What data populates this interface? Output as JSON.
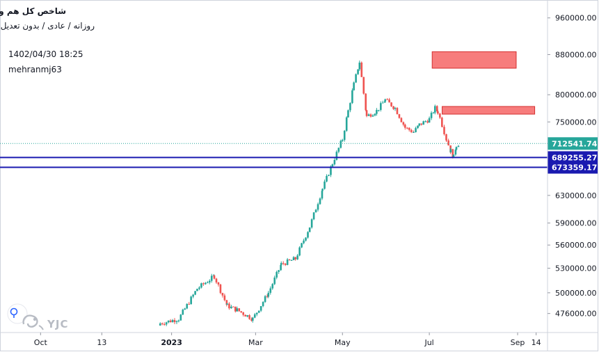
{
  "header": {
    "title": "شاخص کل هم وزن",
    "subtitle": "روزانه / عادی / بدون تعدیل",
    "timestamp": "1402/04/30 18:25",
    "author": "mehranmj63"
  },
  "watermark": {
    "text": "YJC"
  },
  "colors": {
    "up": "#26a69a",
    "down": "#ef5350",
    "support": "#1a1ab0",
    "zone_fill": "#f77c7c",
    "zone_border": "#d32f2f",
    "price_line": "#26a69a",
    "axis_text": "#131722",
    "grid": "#e0e3eb"
  },
  "chart_data": {
    "type": "candlestick",
    "y_scale": "log",
    "ylim": [
      455000,
      1000000
    ],
    "y_ticks": [
      960000,
      880000,
      800000,
      750000,
      630000,
      590000,
      560000,
      530000,
      500000,
      476000
    ],
    "y_tick_labels": [
      "960000.00",
      "880000.00",
      "800000.00",
      "750000.00",
      "630000.00",
      "590000.00",
      "560000.00",
      "530000.00",
      "500000.00",
      "476000.00"
    ],
    "x_ticks": [
      "2022-10-01",
      "2022-11-13",
      "2023-01-01",
      "2023-03-01",
      "2023-05-01",
      "2023-07-01",
      "2023-09-01",
      "2023-09-14"
    ],
    "x_tick_labels": [
      "Oct",
      "13",
      "2023",
      "Mar",
      "May",
      "Jul",
      "Sep",
      "14"
    ],
    "x_tick_bold": [
      false,
      false,
      true,
      false,
      false,
      false,
      false,
      false
    ],
    "xlim": [
      "2022-09-03",
      "2023-09-22"
    ],
    "series": [
      {
        "dates": [
          "2022-12-24",
          "2023-01-06",
          "2023-01-19",
          "2023-01-31",
          "2023-02-09",
          "2023-02-16",
          "2023-02-27",
          "2023-03-10",
          "2023-03-19",
          "2023-03-29",
          "2023-04-08",
          "2023-04-17",
          "2023-04-24",
          "2023-05-01",
          "2023-05-05",
          "2023-05-09",
          "2023-05-13",
          "2023-05-18",
          "2023-05-25",
          "2023-05-31",
          "2023-06-07",
          "2023-06-14",
          "2023-06-20",
          "2023-06-24",
          "2023-07-01",
          "2023-07-05",
          "2023-07-07",
          "2023-07-10",
          "2023-07-13",
          "2023-07-16",
          "2023-07-18",
          "2023-07-20",
          "2023-07-22"
        ],
        "close": [
          465000,
          470000,
          505000,
          520000,
          485000,
          480000,
          470000,
          500000,
          535000,
          542000,
          585000,
          640000,
          680000,
          720000,
          770000,
          820000,
          865000,
          760000,
          770000,
          790000,
          775000,
          740000,
          732000,
          745000,
          755000,
          775000,
          768000,
          745000,
          720000,
          700000,
          690000,
          710000,
          712541.74
        ]
      }
    ],
    "horizontal_levels": [
      {
        "value": 712541.74,
        "label": "712541.74",
        "style": "dotted"
      },
      {
        "value": 689255.27,
        "label": "689255.27",
        "style": "solid"
      },
      {
        "value": 673359.17,
        "label": "673359.17",
        "style": "solid"
      }
    ],
    "zones": [
      {
        "x_start": "2023-07-03",
        "x_end": "2023-08-31",
        "y_low": 852000,
        "y_high": 886000
      },
      {
        "x_start": "2023-07-10",
        "x_end": "2023-09-13",
        "y_low": 764000,
        "y_high": 778000
      }
    ]
  }
}
